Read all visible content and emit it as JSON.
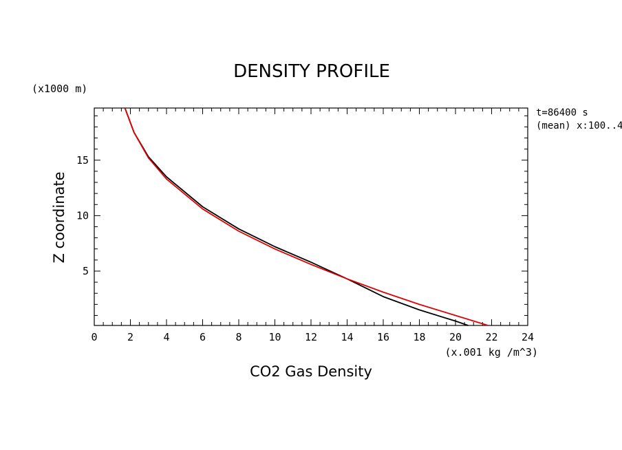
{
  "chart_data": {
    "type": "line",
    "title": "DENSITY PROFILE",
    "xlabel": "CO2 Gas Density",
    "ylabel": "Z coordinate",
    "x_units": "(x.001 kg /m^3)",
    "y_units": "(x1000 m)",
    "annotations": [
      "t=86400 s",
      "(mean) x:100..4"
    ],
    "xlim": [
      0,
      24
    ],
    "ylim": [
      0.1,
      19.7
    ],
    "x_ticks": [
      0,
      2,
      4,
      6,
      8,
      10,
      12,
      14,
      16,
      18,
      20,
      22,
      24
    ],
    "y_ticks": [
      5,
      10,
      15
    ],
    "grid": false,
    "series": [
      {
        "color": "#000000",
        "points": [
          [
            20.7,
            0.1
          ],
          [
            20.0,
            0.5
          ],
          [
            18.0,
            1.5
          ],
          [
            16.0,
            2.7
          ],
          [
            14.0,
            4.3
          ],
          [
            12.0,
            5.8
          ],
          [
            10.0,
            7.2
          ],
          [
            8.0,
            8.8
          ],
          [
            6.0,
            10.8
          ],
          [
            4.0,
            13.5
          ],
          [
            3.0,
            15.3
          ],
          [
            2.2,
            17.5
          ],
          [
            1.7,
            19.7
          ]
        ]
      },
      {
        "color": "#e00000",
        "points": [
          [
            21.8,
            0.1
          ],
          [
            20.0,
            1.0
          ],
          [
            18.0,
            2.0
          ],
          [
            16.0,
            3.1
          ],
          [
            14.0,
            4.3
          ],
          [
            12.0,
            5.6
          ],
          [
            10.0,
            7.0
          ],
          [
            8.0,
            8.6
          ],
          [
            6.0,
            10.6
          ],
          [
            4.0,
            13.3
          ],
          [
            3.0,
            15.2
          ],
          [
            2.2,
            17.5
          ],
          [
            1.7,
            19.7
          ]
        ]
      }
    ]
  }
}
